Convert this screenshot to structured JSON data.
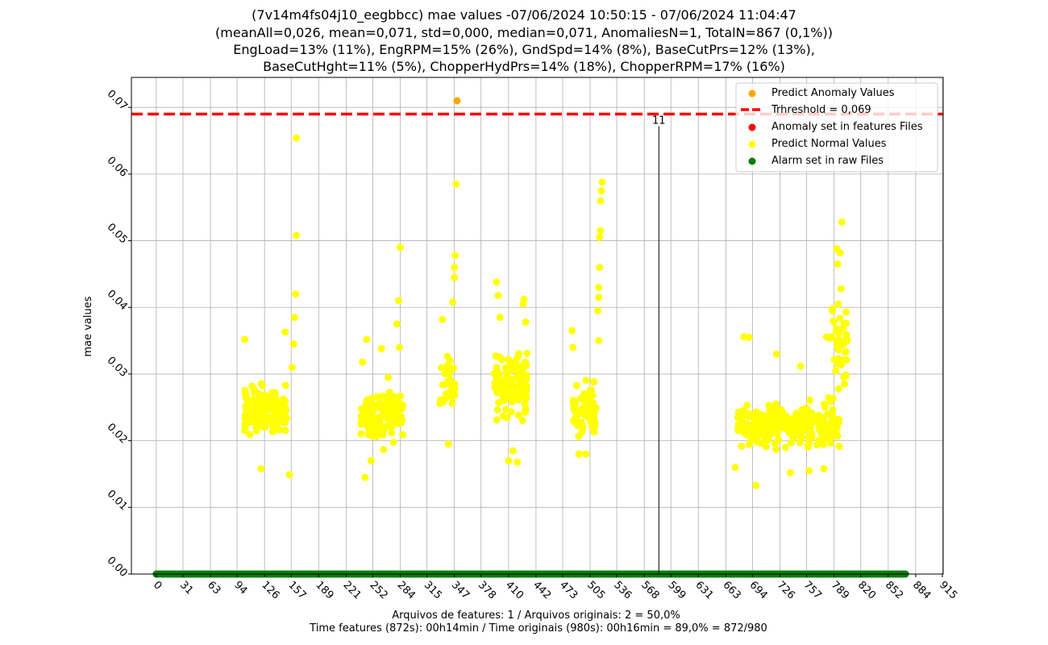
{
  "chart_data": {
    "type": "scatter",
    "title_lines": [
      "(7v14m4fs04j10_eegbbcc) mae values -07/06/2024 10:50:15 - 07/06/2024 11:04:47",
      "(meanAll=0,026, mean=0,071, std=0,000, median=0,071, AnomaliesN=1, TotalN=867 (0,1%))",
      "EngLoad=13% (11%), EngRPM=15% (26%), GndSpd=14% (8%), BaseCutPrs=12% (13%),",
      "BaseCutHght=11% (5%), ChopperHydPrs=14% (18%), ChopperRPM=17% (16%)"
    ],
    "ylabel": "mae values",
    "xlabel_lines": [
      "Arquivos de features: 1 / Arquivos originais: 2 = 50,0%",
      "Time features (872s): 00h14min / Time originais (980s): 00h16min = 89,0% = 872/980"
    ],
    "xlim": [
      -29,
      916
    ],
    "ylim": [
      0.0,
      0.0745
    ],
    "x_ticks": [
      "0",
      "31",
      "63",
      "94",
      "126",
      "157",
      "189",
      "221",
      "252",
      "284",
      "315",
      "347",
      "378",
      "410",
      "442",
      "473",
      "505",
      "536",
      "568",
      "599",
      "631",
      "663",
      "694",
      "726",
      "757",
      "789",
      "820",
      "852",
      "884",
      "915"
    ],
    "y_ticks": [
      "0.00",
      "0.01",
      "0.02",
      "0.03",
      "0.04",
      "0.05",
      "0.06",
      "0.07"
    ],
    "grid": true,
    "legend_position": "top-right",
    "threshold": {
      "value": 0.069,
      "label": "Trhreshold = 0,069",
      "color": "#ff0000"
    },
    "vline": {
      "x": 585,
      "label": "11"
    },
    "legend": [
      {
        "label": "Predict Anomaly Values",
        "kind": "dot",
        "color": "#ffa500"
      },
      {
        "label": "Trhreshold = 0,069",
        "kind": "dash",
        "color": "#ff0000"
      },
      {
        "label": "Anomaly set in features Files",
        "kind": "dot",
        "color": "#ff0000"
      },
      {
        "label": "Predict Normal Values",
        "kind": "dot",
        "color": "#ffff00"
      },
      {
        "label": "Alarm set in raw Files",
        "kind": "dot",
        "color": "#008000"
      }
    ],
    "series": [
      {
        "name": "Predict Anomaly Values",
        "color": "#ffa500",
        "points": [
          [
            350,
            0.071
          ]
        ]
      },
      {
        "name": "Predict Normal Values",
        "color": "#ffff00",
        "clusters": [
          {
            "x_range": [
              103,
              152
            ],
            "y_mean": 0.0245,
            "y_sd": 0.0035,
            "n": 160,
            "extra": [
              [
                103,
                0.0352
              ],
              [
                155,
                0.0149
              ],
              [
                150,
                0.0363
              ],
              [
                163,
                0.0654
              ],
              [
                163,
                0.0508
              ],
              [
                162,
                0.042
              ],
              [
                161,
                0.0385
              ],
              [
                160,
                0.0345
              ],
              [
                158,
                0.031
              ],
              [
                122,
                0.0158
              ]
            ]
          },
          {
            "x_range": [
              238,
              287
            ],
            "y_mean": 0.024,
            "y_sd": 0.0035,
            "n": 160,
            "extra": [
              [
                243,
                0.0145
              ],
              [
                245,
                0.0352
              ],
              [
                262,
                0.0338
              ],
              [
                270,
                0.0295
              ],
              [
                280,
                0.0375
              ],
              [
                282,
                0.041
              ],
              [
                284,
                0.049
              ],
              [
                283,
                0.034
              ],
              [
                240,
                0.0318
              ],
              [
                250,
                0.017
              ]
            ]
          },
          {
            "x_range": [
              330,
              348
            ],
            "y_mean": 0.028,
            "y_sd": 0.004,
            "n": 30,
            "extra": [
              [
                349,
                0.0585
              ],
              [
                348,
                0.0478
              ],
              [
                347,
                0.046
              ],
              [
                347,
                0.0445
              ],
              [
                345,
                0.0408
              ],
              [
                333,
                0.0382
              ],
              [
                340,
                0.0195
              ]
            ]
          },
          {
            "x_range": [
              392,
              432
            ],
            "y_mean": 0.0285,
            "y_sd": 0.005,
            "n": 110,
            "extra": [
              [
                396,
                0.0438
              ],
              [
                398,
                0.0418
              ],
              [
                400,
                0.0385
              ],
              [
                428,
                0.0412
              ],
              [
                427,
                0.0405
              ],
              [
                430,
                0.0378
              ],
              [
                410,
                0.017
              ],
              [
                420,
                0.0168
              ],
              [
                415,
                0.0185
              ]
            ]
          },
          {
            "x_range": [
              484,
              512
            ],
            "y_mean": 0.0245,
            "y_sd": 0.004,
            "n": 70,
            "extra": [
              [
                519,
                0.0588
              ],
              [
                518,
                0.0575
              ],
              [
                517,
                0.056
              ],
              [
                517,
                0.0515
              ],
              [
                516,
                0.0505
              ],
              [
                516,
                0.046
              ],
              [
                515,
                0.043
              ],
              [
                515,
                0.0415
              ],
              [
                514,
                0.0395
              ],
              [
                515,
                0.035
              ],
              [
                484,
                0.0365
              ],
              [
                485,
                0.034
              ],
              [
                492,
                0.018
              ],
              [
                500,
                0.018
              ]
            ]
          },
          {
            "x_range": [
              677,
              795
            ],
            "y_mean": 0.0225,
            "y_sd": 0.003,
            "n": 270,
            "extra": [
              [
                674,
                0.016
              ],
              [
                698,
                0.0133
              ],
              [
                722,
                0.033
              ],
              [
                738,
                0.0152
              ],
              [
                750,
                0.0312
              ],
              [
                690,
                0.0355
              ],
              [
                684,
                0.0356
              ],
              [
                777,
                0.0158
              ],
              [
                760,
                0.0155
              ]
            ]
          },
          {
            "x_range": [
              780,
              805
            ],
            "y_mean": 0.034,
            "y_sd": 0.006,
            "n": 40,
            "extra": [
              [
                798,
                0.0528
              ],
              [
                792,
                0.0488
              ],
              [
                796,
                0.0482
              ],
              [
                793,
                0.0465
              ],
              [
                797,
                0.0428
              ],
              [
                794,
                0.0405
              ],
              [
                787,
                0.0398
              ],
              [
                799,
                0.0368
              ],
              [
                800,
                0.0345
              ],
              [
                801,
                0.0285
              ]
            ]
          }
        ]
      },
      {
        "name": "Alarm set in raw Files",
        "color": "#008000",
        "x_range": [
          0,
          872
        ],
        "y": 0.0
      }
    ]
  }
}
